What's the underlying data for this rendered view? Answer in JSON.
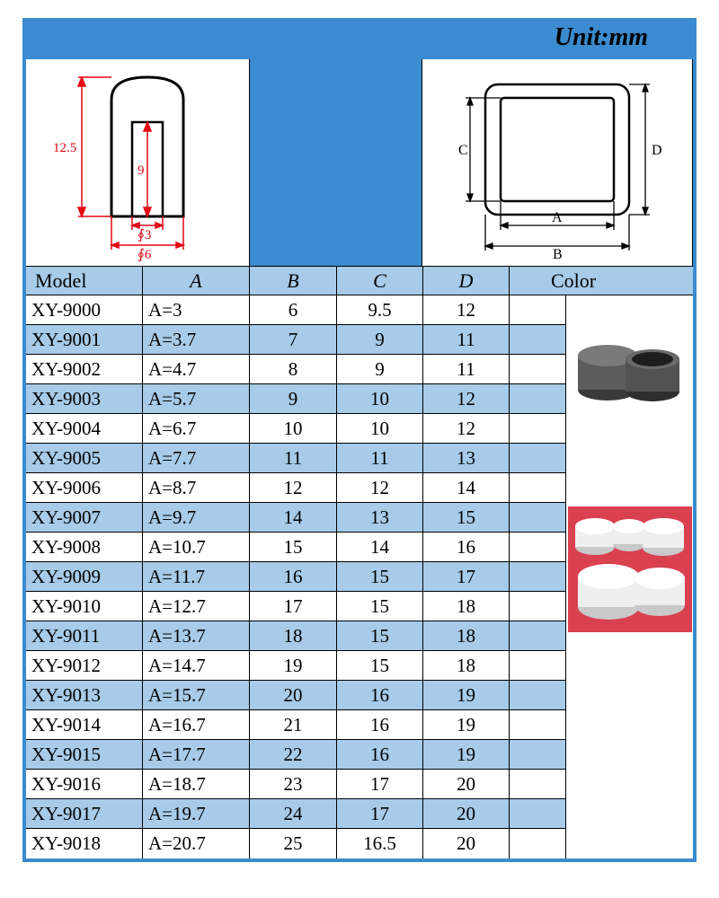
{
  "unit_label": "Unit:mm",
  "headers": {
    "model": "Model",
    "a": "A",
    "b": "B",
    "c": "C",
    "d": "D",
    "color": "Color"
  },
  "diagram_left": {
    "height_outer": "12.5",
    "height_inner": "9",
    "dia_inner": "∮3",
    "dia_outer": "∮6",
    "line_color": "#e30613"
  },
  "diagram_right": {
    "label_a": "A",
    "label_b": "B",
    "label_c": "C",
    "label_d": "D",
    "line_color": "#000000"
  },
  "colors": {
    "brand_blue": "#3a8bcf",
    "row_alt_bg": "#a7cbe8",
    "border": "#000000",
    "text": "#000000",
    "photo_bg_red": "#d94050",
    "cap_grey": "#5c5c5c",
    "cap_white": "#efefef"
  },
  "table": {
    "columns": [
      "Model",
      "A",
      "B",
      "C",
      "D"
    ],
    "rows": [
      [
        "XY-9000",
        "A=3",
        "6",
        "9.5",
        "12"
      ],
      [
        "XY-9001",
        "A=3.7",
        "7",
        "9",
        "11"
      ],
      [
        "XY-9002",
        "A=4.7",
        "8",
        "9",
        "11"
      ],
      [
        "XY-9003",
        "A=5.7",
        "9",
        "10",
        "12"
      ],
      [
        "XY-9004",
        "A=6.7",
        "10",
        "10",
        "12"
      ],
      [
        "XY-9005",
        "A=7.7",
        "11",
        "11",
        "13"
      ],
      [
        "XY-9006",
        "A=8.7",
        "12",
        "12",
        "14"
      ],
      [
        "XY-9007",
        "A=9.7",
        "14",
        "13",
        "15"
      ],
      [
        "XY-9008",
        "A=10.7",
        "15",
        "14",
        "16"
      ],
      [
        "XY-9009",
        "A=11.7",
        "16",
        "15",
        "17"
      ],
      [
        "XY-9010",
        "A=12.7",
        "17",
        "15",
        "18"
      ],
      [
        "XY-9011",
        "A=13.7",
        "18",
        "15",
        "18"
      ],
      [
        "XY-9012",
        "A=14.7",
        "19",
        "15",
        "18"
      ],
      [
        "XY-9013",
        "A=15.7",
        "20",
        "16",
        "19"
      ],
      [
        "XY-9014",
        "A=16.7",
        "21",
        "16",
        "19"
      ],
      [
        "XY-9015",
        "A=17.7",
        "22",
        "16",
        "19"
      ],
      [
        "XY-9016",
        "A=18.7",
        "23",
        "17",
        "20"
      ],
      [
        "XY-9017",
        "A=19.7",
        "24",
        "17",
        "20"
      ],
      [
        "XY-9018",
        "A=20.7",
        "25",
        "16.5",
        "20"
      ]
    ]
  }
}
